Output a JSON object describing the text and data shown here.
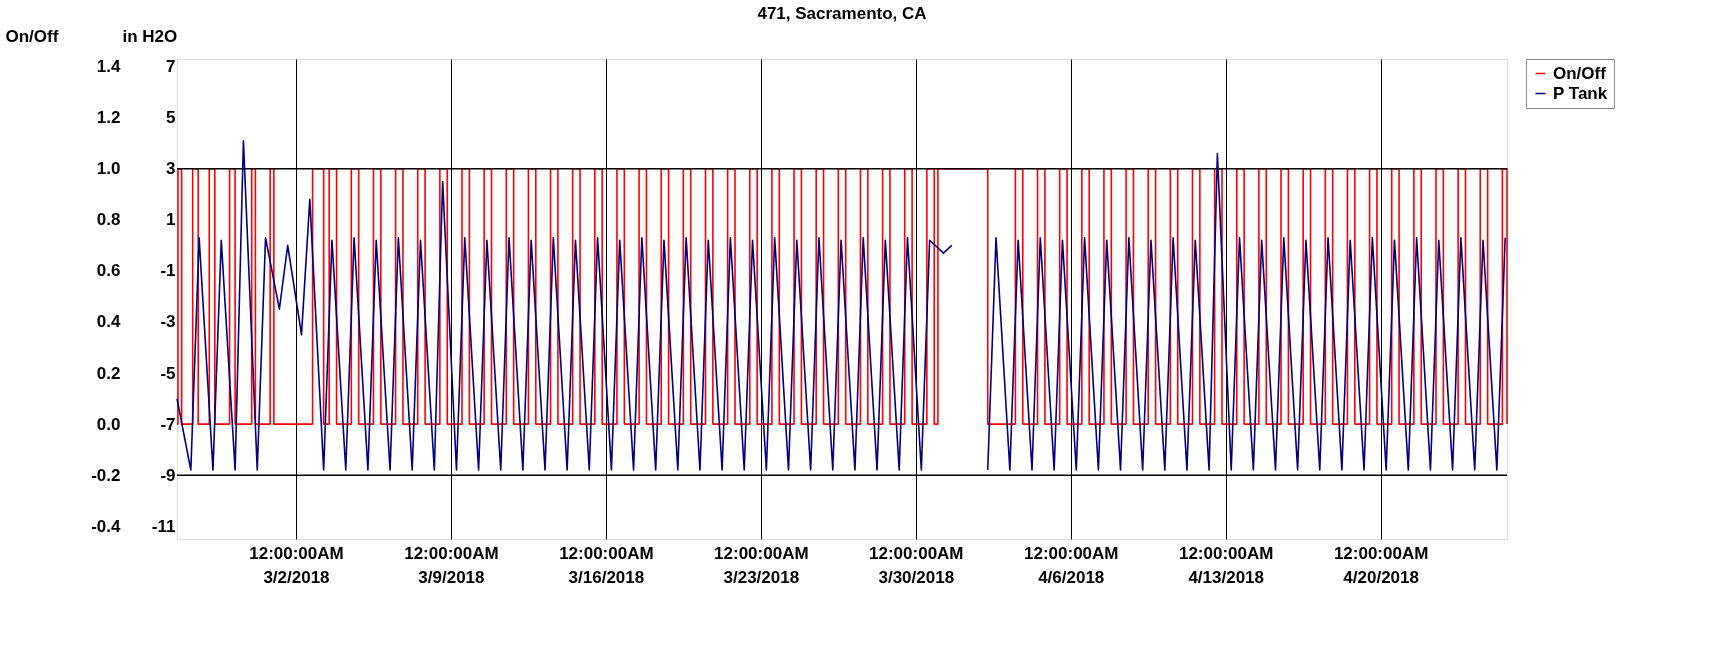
{
  "chart_data": {
    "type": "line",
    "title": "471, Sacramento, CA",
    "ylabel": "On/Off",
    "y2label": "in H2O",
    "xlim": [
      "2018-02-24T15:00",
      "2018-04-25T17:00"
    ],
    "xticks": [
      {
        "value": "2018-03-02",
        "label": "12:00:00AM 3/2/2018"
      },
      {
        "value": "2018-03-09",
        "label": "12:00:00AM 3/9/2018"
      },
      {
        "value": "2018-03-16",
        "label": "12:00:00AM 3/16/2018"
      },
      {
        "value": "2018-03-23",
        "label": "12:00:00AM 3/23/2018"
      },
      {
        "value": "2018-03-30",
        "label": "12:00:00AM 3/30/2018"
      },
      {
        "value": "2018-04-06",
        "label": "12:00:00AM 4/6/2018"
      },
      {
        "value": "2018-04-13",
        "label": "12:00:00AM 4/13/2018"
      },
      {
        "value": "2018-04-20",
        "label": "12:00:00AM 4/20/2018"
      }
    ],
    "ylim": [
      -0.45,
      1.43
    ],
    "yticks": [
      {
        "value": -0.4,
        "label": "-0.4"
      },
      {
        "value": -0.2,
        "label": "-0.2"
      },
      {
        "value": 0,
        "label": "0.0"
      },
      {
        "value": 0.2,
        "label": "0.2"
      },
      {
        "value": 0.4,
        "label": "0.4"
      },
      {
        "value": 0.6,
        "label": "0.6"
      },
      {
        "value": 0.8,
        "label": "0.8"
      },
      {
        "value": 1,
        "label": "1.0"
      },
      {
        "value": 1.2,
        "label": "1.2"
      },
      {
        "value": 1.4,
        "label": "1.4"
      }
    ],
    "y2lim": [
      -11.5,
      7.3
    ],
    "y2ticks": [
      -11,
      -9,
      -7,
      -5,
      -3,
      -1,
      1,
      3,
      5,
      7
    ],
    "grid": "x",
    "legend": "right",
    "ref_lines": [
      {
        "axis": "y",
        "value": 1.0,
        "color": "#000000"
      },
      {
        "axis": "y",
        "value": -0.2,
        "color": "#000000"
      }
    ],
    "series": [
      {
        "name": "On/Off",
        "type": "step",
        "color": "#ff0000",
        "x": [
          "2018-02-24T15:00",
          "2018-02-24T16:00",
          "2018-02-24T20:00",
          "2018-02-25T08:00",
          "2018-02-25T14:00",
          "2018-02-26T02:00",
          "2018-02-26T08:00",
          "2018-02-27T00:00",
          "2018-02-27T06:00",
          "2018-02-28T00:00",
          "2018-02-28T04:00",
          "2018-02-28T20:00",
          "2018-03-01T00:00",
          "2018-03-02T18:00",
          "2018-03-03T06:00",
          "2018-03-03T12:00",
          "2018-03-03T20:00",
          "2018-03-04T12:00",
          "2018-03-04T20:00",
          "2018-03-05T12:00",
          "2018-03-05T20:00",
          "2018-03-06T12:00",
          "2018-03-06T20:00",
          "2018-03-07T12:00",
          "2018-03-07T20:00",
          "2018-03-08T12:00",
          "2018-03-08T20:00",
          "2018-03-09T12:00",
          "2018-03-09T20:00",
          "2018-03-10T12:00",
          "2018-03-10T20:00",
          "2018-03-11T12:00",
          "2018-03-11T20:00",
          "2018-03-12T12:00",
          "2018-03-12T20:00",
          "2018-03-13T12:00",
          "2018-03-13T20:00",
          "2018-03-14T12:00",
          "2018-03-14T20:00",
          "2018-03-15T12:00",
          "2018-03-15T20:00",
          "2018-03-16T12:00",
          "2018-03-16T20:00",
          "2018-03-17T12:00",
          "2018-03-17T20:00",
          "2018-03-18T12:00",
          "2018-03-18T20:00",
          "2018-03-19T12:00",
          "2018-03-19T20:00",
          "2018-03-20T12:00",
          "2018-03-20T20:00",
          "2018-03-21T12:00",
          "2018-03-21T20:00",
          "2018-03-22T12:00",
          "2018-03-22T20:00",
          "2018-03-23T12:00",
          "2018-03-23T20:00",
          "2018-03-24T12:00",
          "2018-03-24T20:00",
          "2018-03-25T12:00",
          "2018-03-25T20:00",
          "2018-03-26T12:00",
          "2018-03-26T20:00",
          "2018-03-27T12:00",
          "2018-03-27T20:00",
          "2018-03-28T12:00",
          "2018-03-28T20:00",
          "2018-03-29T12:00",
          "2018-03-29T20:00",
          "2018-03-30T12:00",
          "2018-03-30T20:00",
          "2018-03-31T00:00",
          "2018-04-02T06:00",
          "2018-04-03T12:00",
          "2018-04-03T20:00",
          "2018-04-04T12:00",
          "2018-04-04T20:00",
          "2018-04-05T12:00",
          "2018-04-05T20:00",
          "2018-04-06T12:00",
          "2018-04-06T20:00",
          "2018-04-07T12:00",
          "2018-04-07T20:00",
          "2018-04-08T12:00",
          "2018-04-08T20:00",
          "2018-04-09T12:00",
          "2018-04-09T20:00",
          "2018-04-10T12:00",
          "2018-04-10T20:00",
          "2018-04-11T12:00",
          "2018-04-11T20:00",
          "2018-04-12T12:00",
          "2018-04-12T20:00",
          "2018-04-13T12:00",
          "2018-04-13T20:00",
          "2018-04-14T12:00",
          "2018-04-14T20:00",
          "2018-04-15T12:00",
          "2018-04-15T20:00",
          "2018-04-16T12:00",
          "2018-04-16T20:00",
          "2018-04-17T12:00",
          "2018-04-17T20:00",
          "2018-04-18T12:00",
          "2018-04-18T20:00",
          "2018-04-19T12:00",
          "2018-04-19T20:00",
          "2018-04-20T12:00",
          "2018-04-20T20:00",
          "2018-04-21T12:00",
          "2018-04-21T20:00",
          "2018-04-22T12:00",
          "2018-04-22T20:00",
          "2018-04-23T12:00",
          "2018-04-23T20:00",
          "2018-04-24T12:00",
          "2018-04-24T20:00",
          "2018-04-25T12:00",
          "2018-04-25T17:00"
        ],
        "values": [
          0,
          1,
          0,
          1,
          0,
          1,
          0,
          1,
          0,
          1,
          0,
          1,
          0,
          1,
          0,
          1,
          0,
          1,
          0,
          1,
          0,
          1,
          0,
          1,
          0,
          1,
          0,
          1,
          0,
          1,
          0,
          1,
          0,
          1,
          0,
          1,
          0,
          1,
          0,
          1,
          0,
          1,
          0,
          1,
          0,
          1,
          0,
          1,
          0,
          1,
          0,
          1,
          0,
          1,
          0,
          1,
          0,
          1,
          0,
          1,
          0,
          1,
          0,
          1,
          0,
          1,
          0,
          1,
          0,
          1,
          0,
          1,
          0,
          1,
          0,
          1,
          0,
          1,
          0,
          1,
          0,
          1,
          0,
          1,
          0,
          1,
          0,
          1,
          0,
          1,
          0,
          1,
          0,
          1,
          0,
          1,
          0,
          1,
          0,
          1,
          0,
          1,
          0,
          1,
          0,
          1,
          0,
          1,
          0,
          1,
          0,
          1,
          0,
          1,
          0,
          1,
          0,
          1,
          0
        ]
      },
      {
        "name": "P Tank",
        "axis": "y2",
        "color": "#000080",
        "x": [
          "2018-02-24T15:00",
          "2018-02-25T06:00",
          "2018-02-25T15:00",
          "2018-02-26T06:00",
          "2018-02-26T15:00",
          "2018-02-27T06:00",
          "2018-02-27T15:00",
          "2018-02-28T06:00",
          "2018-02-28T15:00",
          "2018-03-01T06:00",
          "2018-03-01T15:00",
          "2018-03-02T06:00",
          "2018-03-02T15:00",
          "2018-03-03T06:00",
          "2018-03-03T15:00",
          "2018-03-04T06:00",
          "2018-03-04T15:00",
          "2018-03-05T06:00",
          "2018-03-05T15:00",
          "2018-03-06T06:00",
          "2018-03-06T15:00",
          "2018-03-07T06:00",
          "2018-03-07T15:00",
          "2018-03-08T06:00",
          "2018-03-08T15:00",
          "2018-03-09T06:00",
          "2018-03-09T15:00",
          "2018-03-10T06:00",
          "2018-03-10T15:00",
          "2018-03-11T06:00",
          "2018-03-11T15:00",
          "2018-03-12T06:00",
          "2018-03-12T15:00",
          "2018-03-13T06:00",
          "2018-03-13T15:00",
          "2018-03-14T06:00",
          "2018-03-14T15:00",
          "2018-03-15T06:00",
          "2018-03-15T15:00",
          "2018-03-16T06:00",
          "2018-03-16T15:00",
          "2018-03-17T06:00",
          "2018-03-17T15:00",
          "2018-03-18T06:00",
          "2018-03-18T15:00",
          "2018-03-19T06:00",
          "2018-03-19T15:00",
          "2018-03-20T06:00",
          "2018-03-20T15:00",
          "2018-03-21T06:00",
          "2018-03-21T15:00",
          "2018-03-22T06:00",
          "2018-03-22T15:00",
          "2018-03-23T06:00",
          "2018-03-23T15:00",
          "2018-03-24T06:00",
          "2018-03-24T15:00",
          "2018-03-25T06:00",
          "2018-03-25T15:00",
          "2018-03-26T06:00",
          "2018-03-26T15:00",
          "2018-03-27T06:00",
          "2018-03-27T15:00",
          "2018-03-28T06:00",
          "2018-03-28T15:00",
          "2018-03-29T06:00",
          "2018-03-29T15:00",
          "2018-03-30T06:00",
          "2018-03-30T15:00",
          "2018-03-31T06:00",
          "2018-03-31T15:00",
          "2018-04-01T06:00",
          "2018-04-01T15:00",
          "2018-04-02T06:00",
          "2018-04-02T15:00",
          "2018-04-03T06:00",
          "2018-04-03T15:00",
          "2018-04-04T06:00",
          "2018-04-04T15:00",
          "2018-04-05T06:00",
          "2018-04-05T15:00",
          "2018-04-06T06:00",
          "2018-04-06T15:00",
          "2018-04-07T06:00",
          "2018-04-07T15:00",
          "2018-04-08T06:00",
          "2018-04-08T15:00",
          "2018-04-09T06:00",
          "2018-04-09T15:00",
          "2018-04-10T06:00",
          "2018-04-10T15:00",
          "2018-04-11T06:00",
          "2018-04-11T15:00",
          "2018-04-12T06:00",
          "2018-04-12T15:00",
          "2018-04-13T06:00",
          "2018-04-13T15:00",
          "2018-04-14T06:00",
          "2018-04-14T15:00",
          "2018-04-15T06:00",
          "2018-04-15T15:00",
          "2018-04-16T06:00",
          "2018-04-16T15:00",
          "2018-04-17T06:00",
          "2018-04-17T15:00",
          "2018-04-18T06:00",
          "2018-04-18T15:00",
          "2018-04-19T06:00",
          "2018-04-19T15:00",
          "2018-04-20T06:00",
          "2018-04-20T15:00",
          "2018-04-21T06:00",
          "2018-04-21T15:00",
          "2018-04-22T06:00",
          "2018-04-22T15:00",
          "2018-04-23T06:00",
          "2018-04-23T15:00",
          "2018-04-24T06:00",
          "2018-04-24T15:00",
          "2018-04-25T06:00",
          "2018-04-25T15:00"
        ],
        "values": [
          -6,
          -8.8,
          0.3,
          -8.8,
          0.2,
          -8.8,
          4.1,
          -8.8,
          0.3,
          -2.5,
          0,
          -3.5,
          1.8,
          -8.8,
          0.2,
          -8.8,
          0.3,
          -8.8,
          0.2,
          -8.8,
          0.3,
          -8.8,
          0.2,
          -8.8,
          2.5,
          -8.8,
          0.3,
          -8.8,
          0.2,
          -8.8,
          0.3,
          -8.8,
          0.2,
          -8.8,
          0.3,
          -8.8,
          0.2,
          -8.8,
          0.3,
          -8.8,
          0.2,
          -8.8,
          0.3,
          -8.8,
          0.2,
          -8.8,
          0.3,
          -8.8,
          0.2,
          -8.8,
          0.3,
          -8.8,
          0.2,
          -8.8,
          0.3,
          -8.8,
          0.2,
          -8.8,
          0.3,
          -8.8,
          0.2,
          -8.8,
          0.3,
          -8.8,
          0.2,
          -8.8,
          0.3,
          -8.8,
          0.2,
          -0.3,
          0,
          null,
          null,
          -8.8,
          0.3,
          -8.8,
          0.2,
          -8.8,
          0.3,
          -8.8,
          0.2,
          -8.8,
          0.3,
          -8.8,
          0.2,
          -8.8,
          0.3,
          -8.8,
          0.2,
          -8.8,
          0.3,
          -8.8,
          0.2,
          -8.8,
          3.6,
          -8.8,
          0.3,
          -8.8,
          0.2,
          -8.8,
          0.3,
          -8.8,
          0.2,
          -8.8,
          0.3,
          -8.8,
          0.2,
          -8.8,
          0.3,
          -8.8,
          0.2,
          -8.8,
          0.3,
          -8.8,
          0.2,
          -8.8,
          0.3,
          -8.8,
          0.2,
          -8.8,
          0.3
        ]
      }
    ]
  }
}
